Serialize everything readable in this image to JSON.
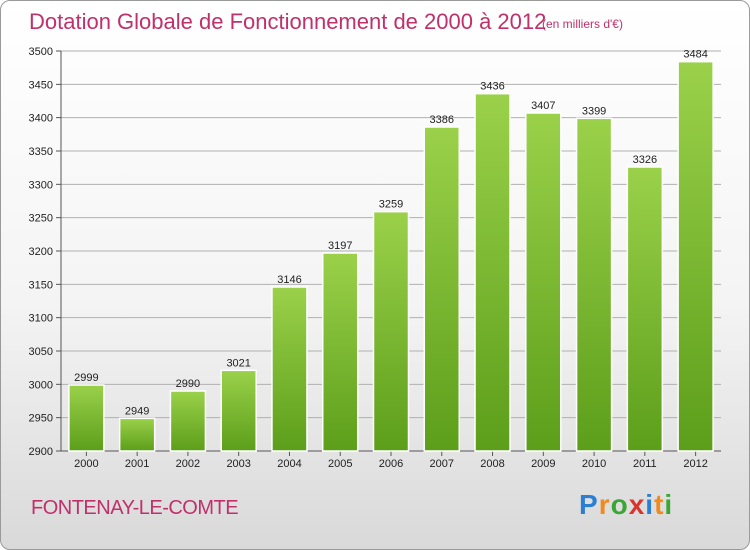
{
  "header": {
    "title": "Dotation Globale de Fonctionnement de 2000 à 2012",
    "unit": "(en milliers d'€)"
  },
  "footer": {
    "commune": "FONTENAY-LE-COMTE",
    "logo": "Proxiti",
    "logo_colors": [
      "#2a7fd4",
      "#f08a1c",
      "#3aa635",
      "#d9352e",
      "#2a7fd4",
      "#f08a1c",
      "#3aa635"
    ]
  },
  "colors": {
    "accent": "#c0306b",
    "bar_top": "#9bd14a",
    "bar_bottom": "#5c9e1a"
  },
  "chart_data": {
    "type": "bar",
    "title": "Dotation Globale de Fonctionnement de 2000 à 2012",
    "subtitle": "(en milliers d'€)",
    "xlabel": "",
    "ylabel": "",
    "categories": [
      "2000",
      "2001",
      "2002",
      "2003",
      "2004",
      "2005",
      "2006",
      "2007",
      "2008",
      "2009",
      "2010",
      "2011",
      "2012"
    ],
    "values": [
      2999,
      2949,
      2990,
      3021,
      3146,
      3197,
      3259,
      3386,
      3436,
      3407,
      3399,
      3326,
      3484
    ],
    "ylim": [
      2900,
      3500
    ],
    "yticks": [
      2900,
      2950,
      3000,
      3050,
      3100,
      3150,
      3200,
      3250,
      3300,
      3350,
      3400,
      3450,
      3500
    ],
    "grid": true,
    "data_labels": true
  }
}
